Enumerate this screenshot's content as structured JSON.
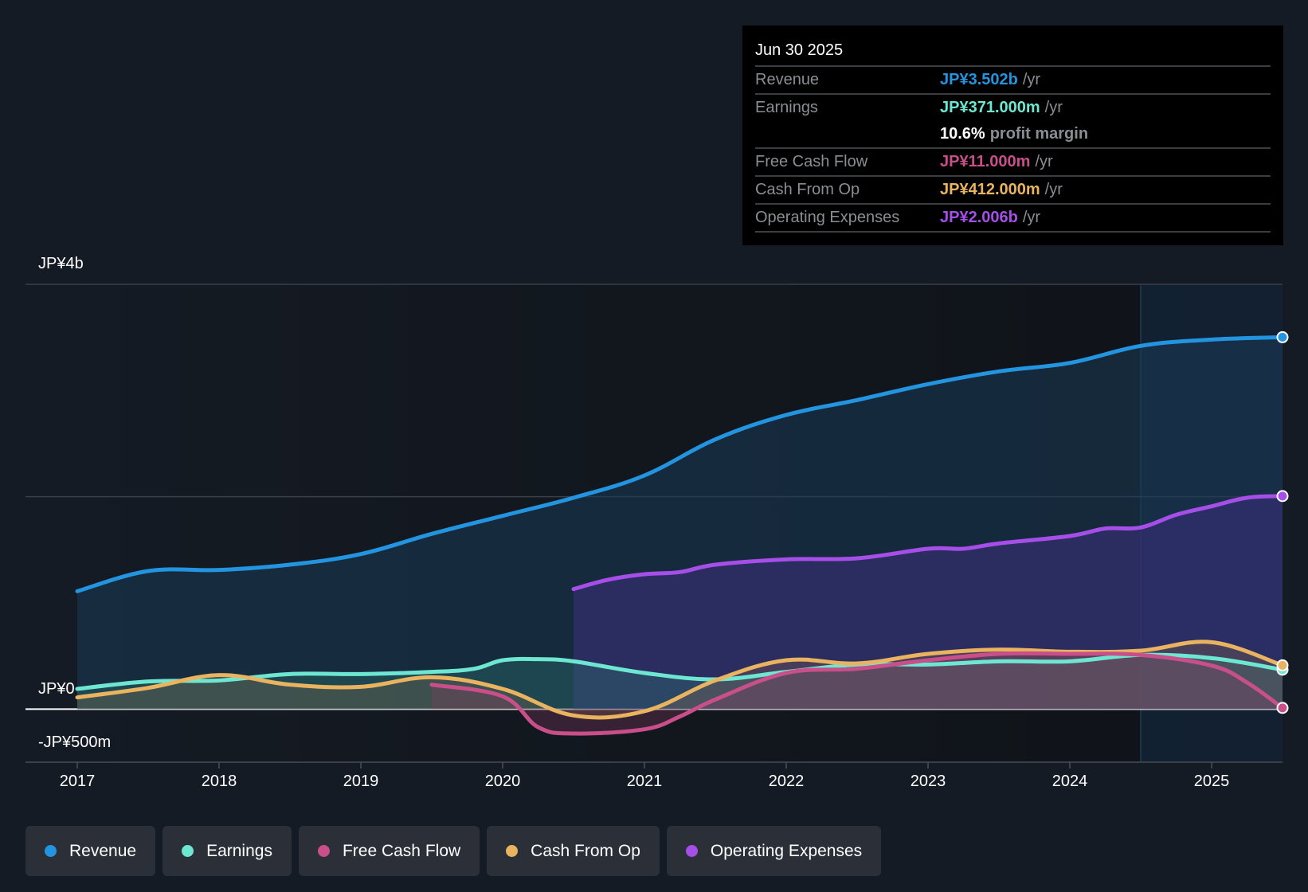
{
  "tooltip": {
    "date": "Jun 30 2025",
    "rows": [
      {
        "label": "Revenue",
        "value": "JP¥3.502b",
        "unit": "/yr",
        "color": "#2394df"
      },
      {
        "label": "Earnings",
        "value": "JP¥371.000m",
        "unit": "/yr",
        "color": "#6ee7d2"
      },
      {
        "label": "",
        "value": "10.6%",
        "unit": "profit margin",
        "color": "#ffffff"
      },
      {
        "label": "Free Cash Flow",
        "value": "JP¥11.000m",
        "unit": "/yr",
        "color": "#c94f8a"
      },
      {
        "label": "Cash From Op",
        "value": "JP¥412.000m",
        "unit": "/yr",
        "color": "#e9b35f"
      },
      {
        "label": "Operating Expenses",
        "value": "JP¥2.006b",
        "unit": "/yr",
        "color": "#a64ee8"
      }
    ]
  },
  "legend": [
    {
      "label": "Revenue",
      "color": "#2394df"
    },
    {
      "label": "Earnings",
      "color": "#6ee7d2"
    },
    {
      "label": "Free Cash Flow",
      "color": "#c94f8a"
    },
    {
      "label": "Cash From Op",
      "color": "#e9b35f"
    },
    {
      "label": "Operating Expenses",
      "color": "#a64ee8"
    }
  ],
  "chart_data": {
    "type": "area",
    "title": "",
    "xlabel": "",
    "ylabel": "",
    "currency": "JP¥",
    "y_unit": "billions",
    "ylim": [
      -0.5,
      4
    ],
    "xlim": [
      2016.64,
      2025.5
    ],
    "y_ticks": [
      {
        "value": 4,
        "label": "JP¥4b"
      },
      {
        "value": 0,
        "label": "JP¥0"
      },
      {
        "value": -0.5,
        "label": "-JP¥500m"
      }
    ],
    "y_gridlines": [
      4,
      2,
      0
    ],
    "x_ticks": [
      2017,
      2018,
      2019,
      2020,
      2021,
      2022,
      2023,
      2024,
      2025
    ],
    "x_tick_labels": [
      "2017",
      "2018",
      "2019",
      "2020",
      "2021",
      "2022",
      "2023",
      "2024",
      "2025"
    ],
    "highlight_from": 2024.5,
    "legend_position": "bottom",
    "series": [
      {
        "name": "Revenue",
        "color": "#2394df",
        "x": [
          2017.0,
          2017.5,
          2018.0,
          2018.5,
          2019.0,
          2019.5,
          2020.0,
          2020.5,
          2021.0,
          2021.5,
          2022.0,
          2022.5,
          2023.0,
          2023.5,
          2024.0,
          2024.5,
          2025.0,
          2025.5
        ],
        "values": [
          1.11,
          1.3,
          1.31,
          1.36,
          1.46,
          1.65,
          1.82,
          1.99,
          2.2,
          2.54,
          2.77,
          2.91,
          3.06,
          3.18,
          3.26,
          3.42,
          3.48,
          3.502
        ]
      },
      {
        "name": "Operating Expenses",
        "color": "#a64ee8",
        "x": [
          2020.5,
          2020.75,
          2021.0,
          2021.25,
          2021.5,
          2022.0,
          2022.5,
          2023.0,
          2023.25,
          2023.5,
          2024.0,
          2024.25,
          2024.5,
          2024.75,
          2025.0,
          2025.25,
          2025.5
        ],
        "values": [
          1.13,
          1.22,
          1.27,
          1.29,
          1.36,
          1.41,
          1.42,
          1.51,
          1.51,
          1.56,
          1.63,
          1.7,
          1.71,
          1.83,
          1.91,
          1.99,
          2.006
        ]
      },
      {
        "name": "Earnings",
        "color": "#6ee7d2",
        "x": [
          2017.0,
          2017.5,
          2018.0,
          2018.5,
          2019.0,
          2019.5,
          2019.8,
          2020.0,
          2020.25,
          2020.5,
          2021.0,
          2021.5,
          2022.0,
          2022.5,
          2023.0,
          2023.5,
          2024.0,
          2024.5,
          2025.0,
          2025.5
        ],
        "values": [
          0.19,
          0.26,
          0.27,
          0.33,
          0.33,
          0.35,
          0.38,
          0.46,
          0.47,
          0.45,
          0.34,
          0.28,
          0.35,
          0.42,
          0.42,
          0.45,
          0.45,
          0.51,
          0.48,
          0.371
        ]
      },
      {
        "name": "Cash From Op",
        "color": "#e9b35f",
        "x": [
          2017.0,
          2017.5,
          2018.0,
          2018.5,
          2019.0,
          2019.5,
          2020.0,
          2020.5,
          2021.0,
          2021.5,
          2022.0,
          2022.5,
          2023.0,
          2023.5,
          2024.0,
          2024.5,
          2025.0,
          2025.5
        ],
        "values": [
          0.11,
          0.2,
          0.32,
          0.23,
          0.21,
          0.3,
          0.19,
          -0.06,
          -0.02,
          0.27,
          0.46,
          0.43,
          0.52,
          0.56,
          0.54,
          0.55,
          0.63,
          0.412
        ]
      },
      {
        "name": "Free Cash Flow",
        "color": "#c94f8a",
        "x": [
          2019.5,
          2020.0,
          2020.25,
          2020.5,
          2021.0,
          2021.25,
          2021.5,
          2022.0,
          2022.5,
          2023.0,
          2023.5,
          2024.0,
          2024.5,
          2025.0,
          2025.25,
          2025.5
        ],
        "values": [
          0.23,
          0.12,
          -0.17,
          -0.23,
          -0.19,
          -0.07,
          0.09,
          0.34,
          0.38,
          0.46,
          0.52,
          0.52,
          0.51,
          0.41,
          0.25,
          0.011
        ]
      }
    ]
  }
}
